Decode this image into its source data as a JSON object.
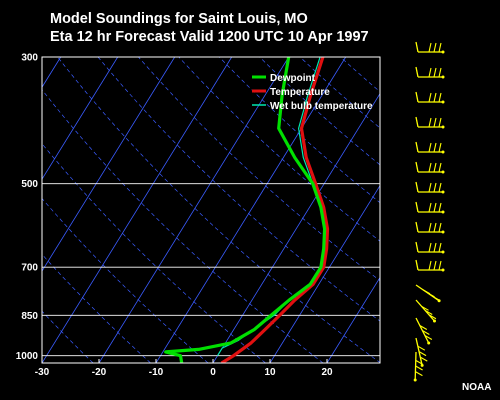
{
  "title_line1": "Model Soundings for Saint Louis, MO",
  "title_line2": "Eta 12 hr Forecast Valid 1200 UTC  10 Apr 1997",
  "credit": "NOAA",
  "colors": {
    "background": "#000000",
    "plot_frame": "#ffffff",
    "isobar": "#ffffff",
    "isotherm": "#3a5cff",
    "dry_adiabat": "#3a5cff",
    "dewpoint": "#00e000",
    "temperature": "#e01010",
    "wet_bulb": "#00e8b0",
    "wind_barb": "#ffff00"
  },
  "chart_data": {
    "type": "line",
    "subtype": "skew-T log-P sounding",
    "x_axis": {
      "ticks": [
        -30,
        -20,
        -10,
        0,
        10,
        20
      ],
      "range": [
        -30,
        30
      ]
    },
    "y_axis": {
      "scale": "log",
      "inverted": true,
      "ticks": [
        300,
        500,
        700,
        850,
        1000
      ],
      "range": [
        300,
        1030
      ]
    },
    "grid": true,
    "legend_position": "top-right",
    "series": [
      {
        "name": "Dewpoint",
        "color": "#00e000",
        "points": [
          [
            1030,
            -5.5
          ],
          [
            1000,
            -6.5
          ],
          [
            985,
            -9.5
          ],
          [
            975,
            -4
          ],
          [
            950,
            1
          ],
          [
            900,
            3.6
          ],
          [
            850,
            5
          ],
          [
            800,
            6.5
          ],
          [
            750,
            8.5
          ],
          [
            700,
            8.5
          ],
          [
            650,
            7
          ],
          [
            600,
            5
          ],
          [
            550,
            2
          ],
          [
            500,
            -2
          ],
          [
            450,
            -8
          ],
          [
            400,
            -14
          ],
          [
            350,
            -17
          ],
          [
            300,
            -20
          ]
        ]
      },
      {
        "name": "Temperature",
        "color": "#e01010",
        "points": [
          [
            1030,
            1.5
          ],
          [
            1000,
            2.8
          ],
          [
            950,
            4.5
          ],
          [
            900,
            5.5
          ],
          [
            850,
            6.5
          ],
          [
            800,
            7.5
          ],
          [
            750,
            9
          ],
          [
            700,
            9
          ],
          [
            650,
            7.5
          ],
          [
            600,
            5.5
          ],
          [
            550,
            2.5
          ],
          [
            500,
            -1.5
          ],
          [
            450,
            -6
          ],
          [
            400,
            -10
          ],
          [
            350,
            -12
          ],
          [
            300,
            -14
          ]
        ]
      },
      {
        "name": "Wet bulb temperature",
        "color": "#00e8b0",
        "points": [
          [
            1000,
            0
          ],
          [
            970,
            0
          ],
          [
            940,
            2
          ],
          [
            900,
            3.5
          ],
          [
            850,
            5.5
          ],
          [
            800,
            6.5
          ],
          [
            750,
            8.5
          ],
          [
            700,
            8.5
          ],
          [
            650,
            7
          ],
          [
            600,
            5
          ],
          [
            550,
            2
          ],
          [
            500,
            -2
          ],
          [
            450,
            -6.5
          ],
          [
            400,
            -10.5
          ],
          [
            350,
            -12.5
          ],
          [
            300,
            -14.5
          ]
        ]
      }
    ],
    "wind_profile_type": "barbs"
  }
}
